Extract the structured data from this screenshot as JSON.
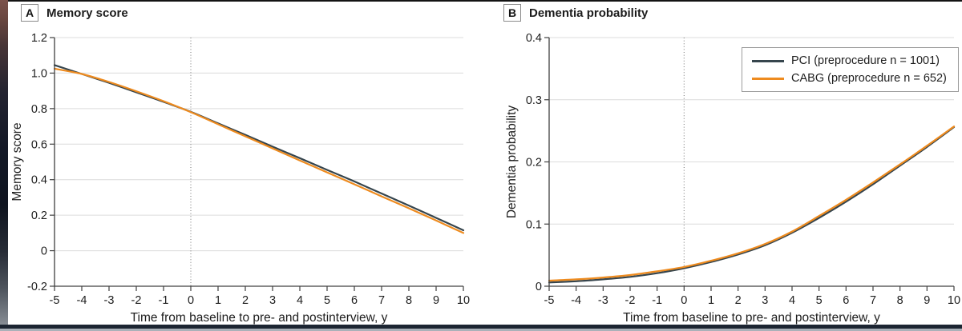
{
  "figure": {
    "panels": [
      {
        "tag": "A",
        "title": "Memory score"
      },
      {
        "tag": "B",
        "title": "Dementia probability"
      }
    ],
    "legend": {
      "items": [
        {
          "label": "PCI (preprocedure n = 1001)",
          "color": "#36454d"
        },
        {
          "label": "CABG (preprocedure n = 652)",
          "color": "#ee8b1f"
        }
      ]
    }
  },
  "colors": {
    "pci": "#36454d",
    "cabg": "#ee8b1f",
    "grid": "#dcdcdc",
    "axis": "#404040",
    "dotted": "#7f7f7f",
    "text": "#1e1e1e"
  },
  "chart_data": [
    {
      "type": "line",
      "panel": "A",
      "title": "Memory score",
      "xlabel": "Time from baseline to pre- and postinterview, y",
      "ylabel": "Memory score",
      "xlim": [
        -5,
        10
      ],
      "ylim": [
        -0.2,
        1.2
      ],
      "xticks": [
        -5,
        -4,
        -3,
        -2,
        -1,
        0,
        1,
        2,
        3,
        4,
        5,
        6,
        7,
        8,
        9,
        10
      ],
      "xtick_labels": [
        "-5",
        "-4",
        "-3",
        "-2",
        "-1",
        "0",
        "1",
        "2",
        "3",
        "4",
        "5",
        "6",
        "7",
        "8",
        "9",
        "10"
      ],
      "yticks": [
        -0.2,
        0,
        0.2,
        0.4,
        0.6,
        0.8,
        1.0,
        1.2
      ],
      "ytick_labels": [
        "-0.2",
        "0",
        "0.2",
        "0.4",
        "0.6",
        "0.8",
        "1.0",
        "1.2"
      ],
      "grid": "horizontal",
      "reference_line_x": 0,
      "legend_position": "none",
      "x": [
        -5,
        -4,
        -3,
        -2,
        -1,
        0,
        1,
        2,
        3,
        4,
        5,
        6,
        7,
        8,
        9,
        10
      ],
      "series": [
        {
          "id": "pci",
          "name": "PCI (preprocedure n = 1001)",
          "color": "#36454d",
          "values": [
            1.045,
            0.995,
            0.945,
            0.892,
            0.838,
            0.782,
            0.717,
            0.652,
            0.586,
            0.521,
            0.455,
            0.39,
            0.322,
            0.254,
            0.185,
            0.115
          ]
        },
        {
          "id": "cabg",
          "name": "CABG (preprocedure n = 652)",
          "color": "#ee8b1f",
          "values": [
            1.025,
            0.995,
            0.95,
            0.898,
            0.842,
            0.78,
            0.712,
            0.644,
            0.576,
            0.508,
            0.441,
            0.374,
            0.306,
            0.239,
            0.17,
            0.1
          ]
        }
      ]
    },
    {
      "type": "line",
      "panel": "B",
      "title": "Dementia probability",
      "xlabel": "Time from baseline to pre- and postinterview, y",
      "ylabel": "Dementia probability",
      "xlim": [
        -5,
        10
      ],
      "ylim": [
        0,
        0.4
      ],
      "xticks": [
        -5,
        -4,
        -3,
        -2,
        -1,
        0,
        1,
        2,
        3,
        4,
        5,
        6,
        7,
        8,
        9,
        10
      ],
      "xtick_labels": [
        "-5",
        "-4",
        "-3",
        "-2",
        "-1",
        "0",
        "1",
        "2",
        "3",
        "4",
        "5",
        "6",
        "7",
        "8",
        "9",
        "10"
      ],
      "yticks": [
        0,
        0.1,
        0.2,
        0.3,
        0.4
      ],
      "ytick_labels": [
        "0",
        "0.1",
        "0.2",
        "0.3",
        "0.4"
      ],
      "grid": "horizontal",
      "reference_line_x": 0,
      "legend_position": "top-right",
      "x": [
        -5,
        -4,
        -3,
        -2,
        -1,
        0,
        1,
        2,
        3,
        4,
        5,
        6,
        7,
        8,
        9,
        10
      ],
      "series": [
        {
          "id": "pci",
          "name": "PCI (preprocedure n = 1001)",
          "color": "#36454d",
          "values": [
            0.006,
            0.008,
            0.011,
            0.015,
            0.021,
            0.029,
            0.039,
            0.051,
            0.066,
            0.086,
            0.11,
            0.136,
            0.164,
            0.194,
            0.224,
            0.256
          ]
        },
        {
          "id": "cabg",
          "name": "CABG (preprocedure n = 652)",
          "color": "#ee8b1f",
          "values": [
            0.009,
            0.011,
            0.014,
            0.018,
            0.024,
            0.031,
            0.041,
            0.053,
            0.068,
            0.088,
            0.113,
            0.139,
            0.167,
            0.196,
            0.226,
            0.257
          ]
        }
      ]
    }
  ]
}
